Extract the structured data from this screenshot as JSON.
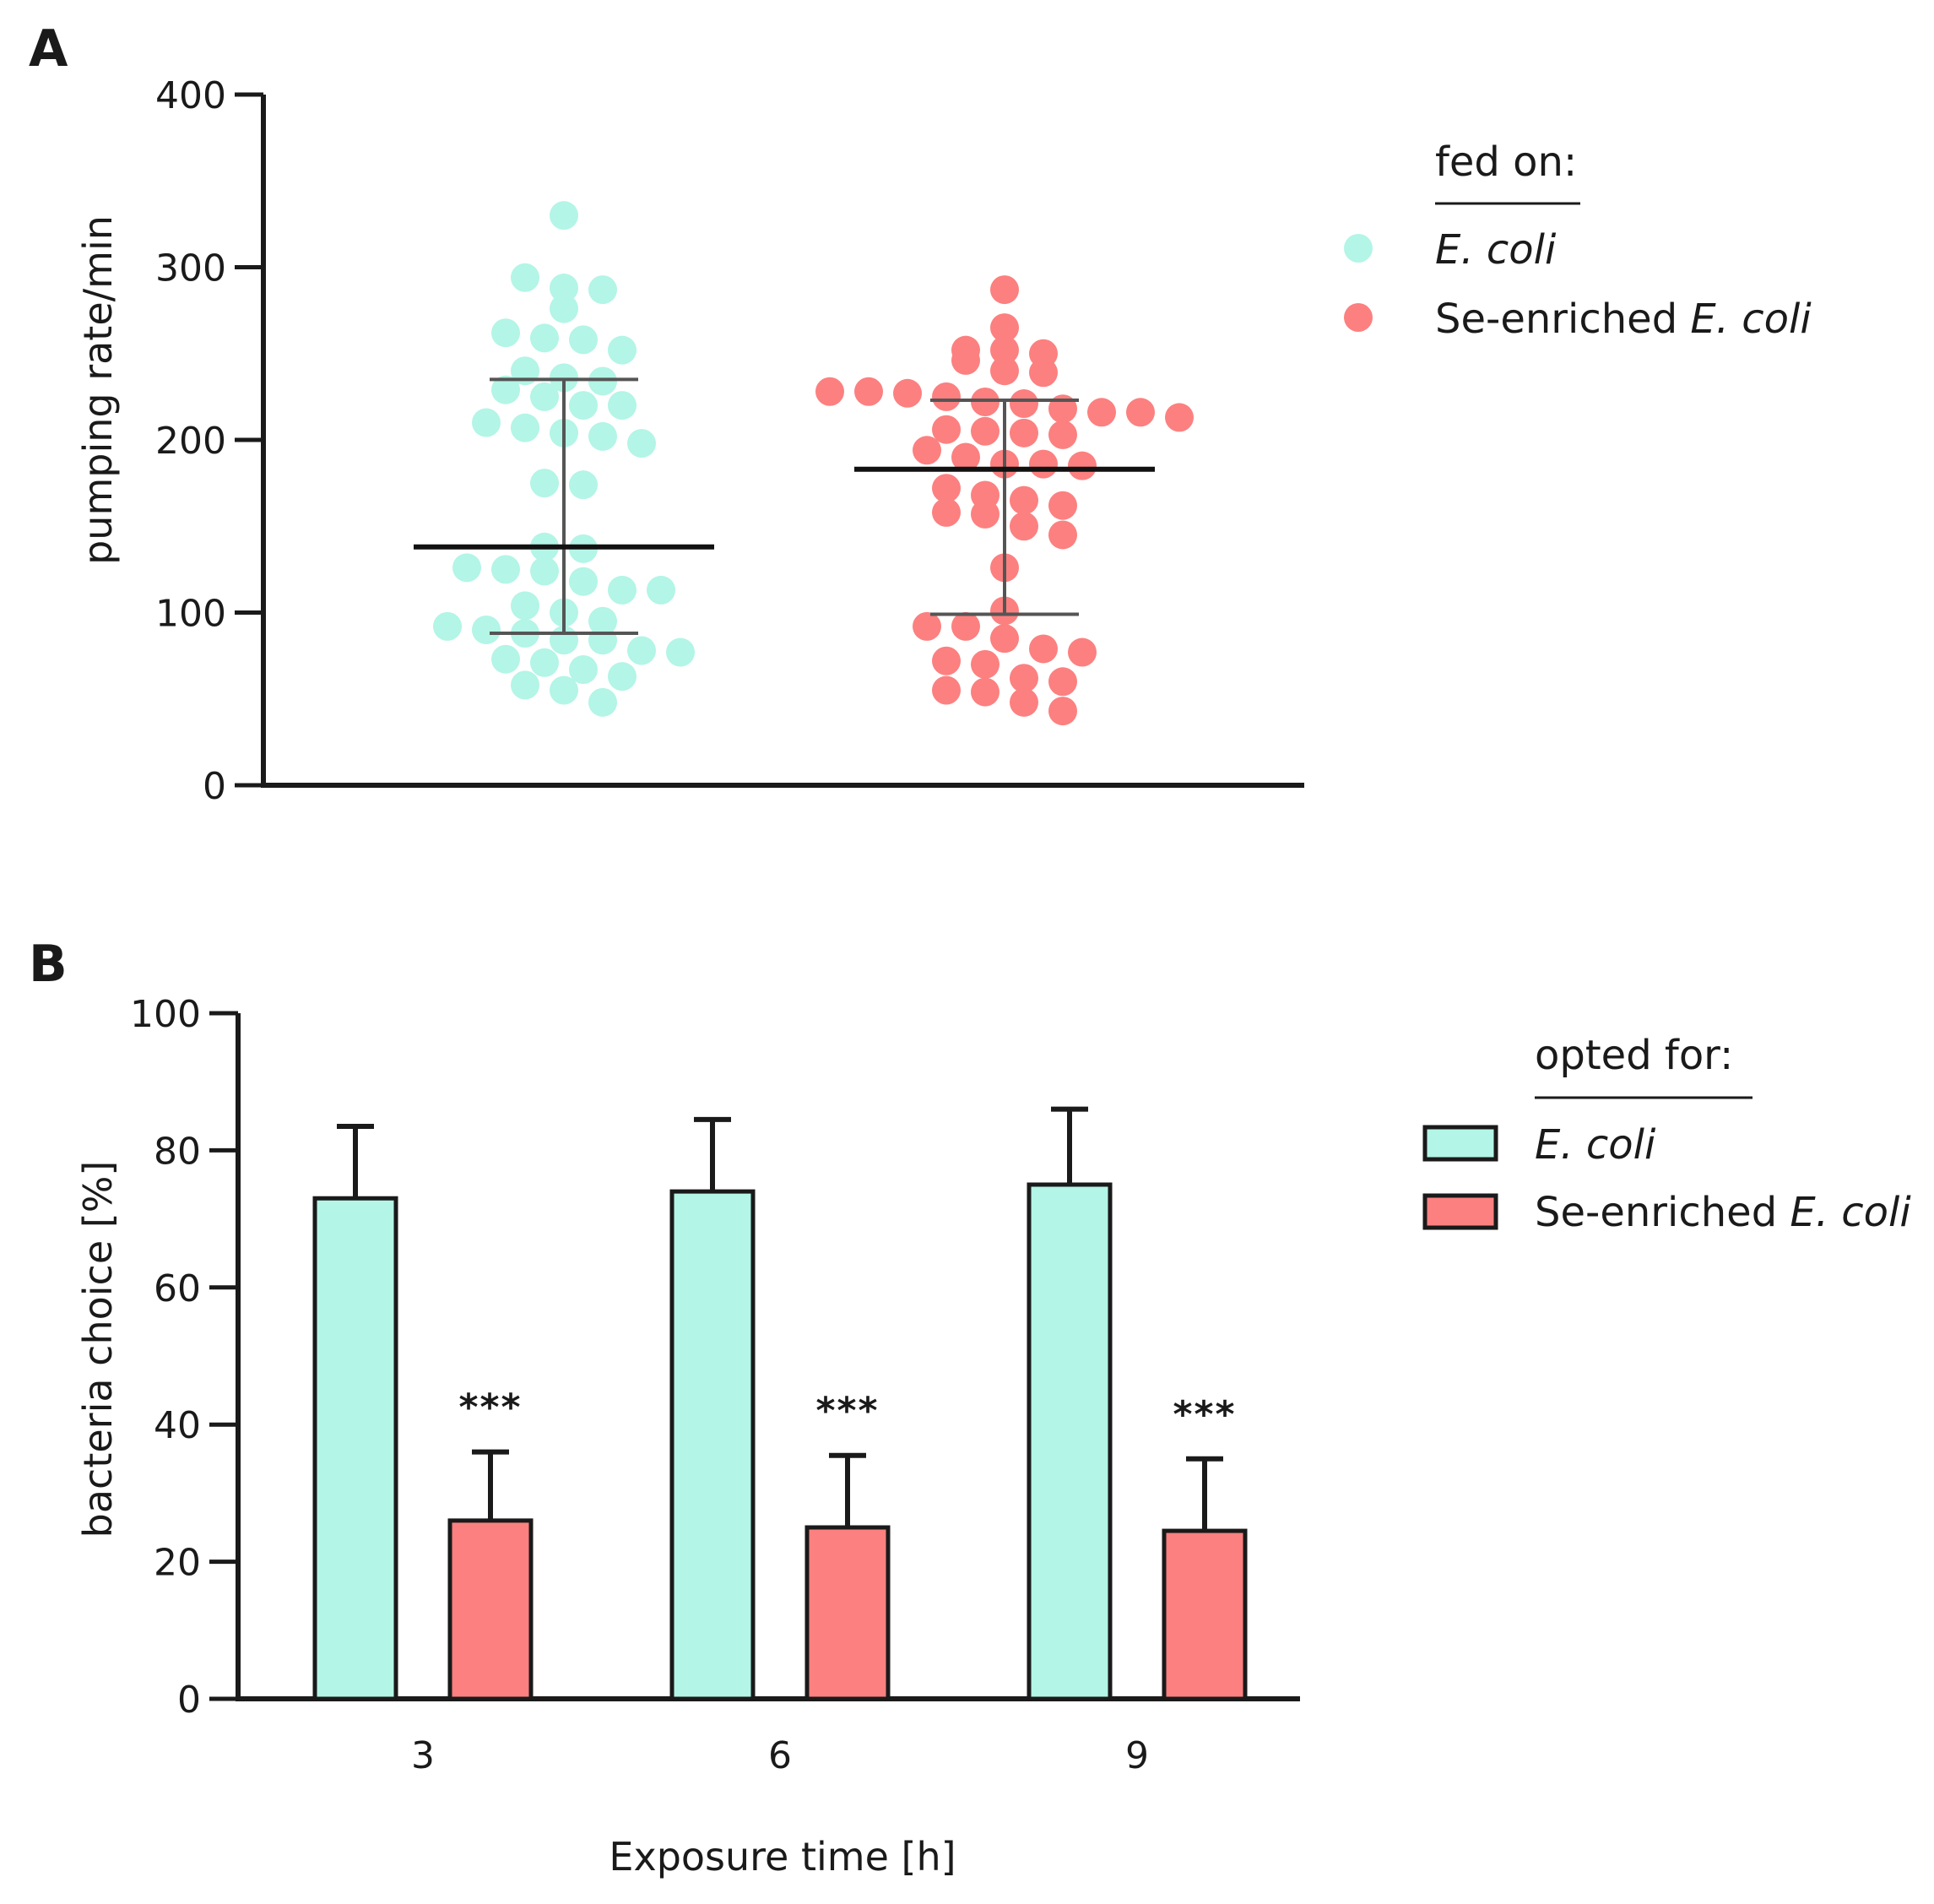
{
  "chart_data": [
    {
      "panel_label": "A",
      "type": "scatter",
      "ylabel": "pumping rate/min",
      "ylim": [
        0,
        400
      ],
      "yticks": [
        0,
        100,
        200,
        300,
        400
      ],
      "legend": {
        "title": "fed on:",
        "position": "top-right",
        "entries": [
          {
            "text": "E. coli",
            "plain": "",
            "italic": "E. coli",
            "color": "#b3f5e6"
          },
          {
            "text": "Se-enriched E. coli",
            "plain": "Se-enriched ",
            "italic": "E. coli",
            "color": "#fc8080"
          }
        ]
      },
      "series": [
        {
          "name": "E. coli",
          "color": "#b3f5e6",
          "median": 138,
          "iqr": [
            88,
            235
          ],
          "values": [
            330,
            294,
            288,
            287,
            276,
            262,
            259,
            258,
            252,
            240,
            236,
            234,
            229,
            225,
            220,
            220,
            210,
            207,
            204,
            202,
            198,
            175,
            174,
            138,
            137,
            126,
            125,
            124,
            118,
            113,
            113,
            104,
            100,
            95,
            92,
            90,
            88,
            84,
            84,
            78,
            77,
            73,
            71,
            67,
            63,
            58,
            55,
            48
          ]
        },
        {
          "name": "Se-enriched E. coli",
          "color": "#fc8080",
          "median": 183,
          "iqr": [
            99,
            223
          ],
          "values": [
            287,
            265,
            252,
            252,
            250,
            246,
            240,
            239,
            228,
            228,
            227,
            225,
            222,
            221,
            218,
            216,
            216,
            213,
            206,
            205,
            204,
            203,
            194,
            190,
            186,
            186,
            185,
            172,
            168,
            165,
            162,
            158,
            157,
            150,
            145,
            126,
            101,
            92,
            92,
            85,
            79,
            77,
            72,
            70,
            62,
            60,
            55,
            54,
            48,
            43
          ]
        }
      ]
    },
    {
      "panel_label": "B",
      "type": "bar",
      "xlabel": "Exposure time [h]",
      "ylabel": "bacteria choice [%]",
      "ylim": [
        0,
        100
      ],
      "yticks": [
        0,
        20,
        40,
        60,
        80,
        100
      ],
      "categories": [
        "3",
        "6",
        "9"
      ],
      "series": [
        {
          "name": "E. coli",
          "color": "#b3f5e6",
          "values": [
            73,
            74,
            75
          ],
          "errors": [
            10.5,
            10.5,
            11
          ]
        },
        {
          "name": "Se-enriched E. coli",
          "color": "#fc8080",
          "values": [
            26,
            25,
            24.5
          ],
          "errors": [
            10,
            10.5,
            10.5
          ]
        }
      ],
      "annotations": [
        "***",
        "***",
        "***"
      ],
      "legend": {
        "title": "opted for:",
        "position": "top-right",
        "entries": [
          {
            "text": "E. coli",
            "plain": "",
            "italic": "E. coli",
            "color": "#b3f5e6"
          },
          {
            "text": "Se-enriched E. coli",
            "plain": "Se-enriched ",
            "italic": "E. coli",
            "color": "#fc8080"
          }
        ]
      }
    }
  ]
}
